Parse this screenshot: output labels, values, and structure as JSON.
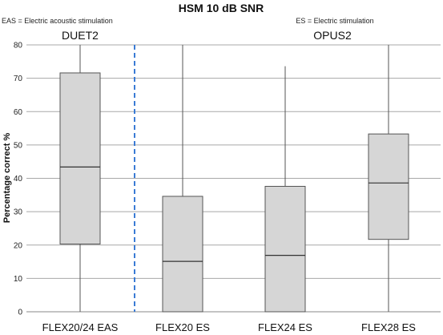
{
  "chart_data": {
    "type": "box",
    "title": "HSM 10 dB SNR",
    "ylabel": "Percentage correct %",
    "xlabel": "",
    "ylim": [
      0,
      80
    ],
    "yticks": [
      0,
      10,
      20,
      30,
      40,
      50,
      60,
      70,
      80
    ],
    "grid": true,
    "annotations": {
      "eas_note": "EAS = Electric acoustic stimulation",
      "es_note": "ES = Electric stimulation",
      "group_left": "DUET2",
      "group_right": "OPUS2"
    },
    "categories": [
      "FLEX20/24 EAS",
      "FLEX20 ES",
      "FLEX24 ES",
      "FLEX28 ES"
    ],
    "boxes": [
      {
        "min": 0,
        "q1": 20.3,
        "median": 43.4,
        "q3": 71.6,
        "max": 80
      },
      {
        "min": 0,
        "q1": 0,
        "median": 15.1,
        "q3": 34.6,
        "max": 80
      },
      {
        "min": 0,
        "q1": 0,
        "median": 16.9,
        "q3": 37.6,
        "max": 73.6
      },
      {
        "min": 0,
        "q1": 21.7,
        "median": 38.6,
        "q3": 53.3,
        "max": 80
      }
    ],
    "colors": {
      "box_fill": "#d6d6d6",
      "box_stroke": "#555555",
      "grid": "#a8a8a8",
      "divider": "#3a7bd5"
    }
  }
}
